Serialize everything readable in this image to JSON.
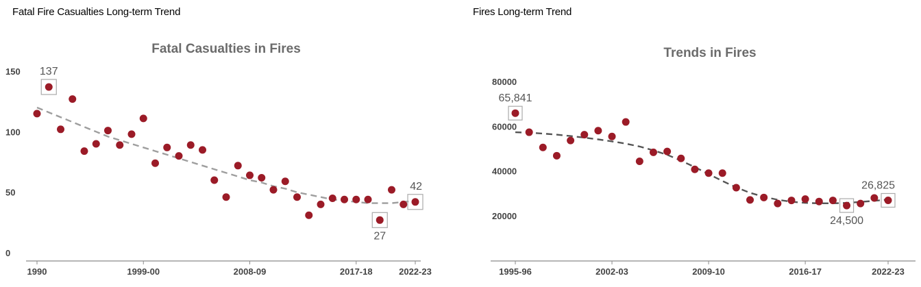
{
  "panels": [
    {
      "heading": "Fatal Fire Casualties Long-term Trend"
    },
    {
      "heading": "Fires Long-term Trend"
    }
  ],
  "chart_data": [
    {
      "type": "scatter",
      "title": "Fatal Casualties in Fires",
      "xlabel": "",
      "ylabel": "",
      "x_tick_labels": [
        "1990",
        "1999-00",
        "2008-09",
        "2017-18",
        "2022-23"
      ],
      "x_tick_index": [
        0,
        9,
        18,
        27,
        32
      ],
      "y_ticks": [
        0,
        50,
        100,
        150
      ],
      "ylim": [
        0,
        150
      ],
      "grid": false,
      "point_color": "#9b1b27",
      "trend_color": "#9e9e9e",
      "series": [
        {
          "values": [
            115,
            137,
            102,
            127,
            84,
            90,
            101,
            89,
            98,
            111,
            74,
            87,
            80,
            89,
            85,
            60,
            46,
            72,
            64,
            62,
            52,
            59,
            46,
            31,
            40,
            45,
            44,
            44,
            44,
            27,
            52,
            40,
            42
          ]
        }
      ],
      "trend": [
        120,
        116,
        112,
        108,
        104,
        100,
        96,
        93,
        90,
        87,
        84,
        81,
        78,
        75,
        72,
        69,
        66,
        63,
        60,
        58,
        55,
        53,
        50,
        48,
        46,
        44,
        43,
        42,
        41,
        41,
        41,
        42,
        43
      ],
      "annotations": [
        {
          "index": 1,
          "label": "137",
          "position": "above"
        },
        {
          "index": 29,
          "label": "27",
          "position": "below"
        },
        {
          "index": 32,
          "label": "42",
          "position": "above"
        }
      ]
    },
    {
      "type": "scatter",
      "title": "Trends in Fires",
      "xlabel": "",
      "ylabel": "",
      "x_tick_labels": [
        "1995-96",
        "2002-03",
        "2009-10",
        "2016-17",
        "2022-23"
      ],
      "x_tick_index": [
        0,
        7,
        14,
        21,
        27
      ],
      "y_ticks": [
        20000,
        40000,
        60000,
        80000
      ],
      "ylim": [
        0,
        80000
      ],
      "grid": false,
      "point_color": "#9b1b27",
      "trend_color": "#555555",
      "series": [
        {
          "values": [
            65841,
            57300,
            50500,
            46800,
            53600,
            56200,
            58000,
            55400,
            61900,
            44300,
            48300,
            48700,
            45600,
            40700,
            39000,
            39000,
            32500,
            27000,
            28100,
            25400,
            26800,
            27400,
            26300,
            26800,
            24500,
            25400,
            27900,
            26825
          ]
        }
      ],
      "trend": [
        57300,
        57100,
        56700,
        56200,
        55600,
        54900,
        54100,
        53200,
        52200,
        50900,
        49200,
        47200,
        44600,
        41700,
        38600,
        35500,
        32600,
        30200,
        28400,
        27100,
        26200,
        25700,
        25500,
        25500,
        25700,
        26100,
        26600,
        27200
      ],
      "annotations": [
        {
          "index": 0,
          "label": "65,841",
          "position": "above"
        },
        {
          "index": 24,
          "label": "24,500",
          "position": "below"
        },
        {
          "index": 27,
          "label": "26,825",
          "position": "above"
        }
      ]
    }
  ]
}
